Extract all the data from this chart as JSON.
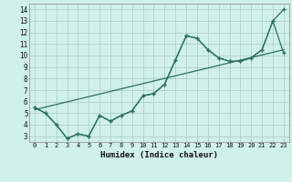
{
  "xlabel": "Humidex (Indice chaleur)",
  "xlim": [
    -0.5,
    23.5
  ],
  "ylim": [
    2.5,
    14.5
  ],
  "xticks": [
    0,
    1,
    2,
    3,
    4,
    5,
    6,
    7,
    8,
    9,
    10,
    11,
    12,
    13,
    14,
    15,
    16,
    17,
    18,
    19,
    20,
    21,
    22,
    23
  ],
  "yticks": [
    3,
    4,
    5,
    6,
    7,
    8,
    9,
    10,
    11,
    12,
    13,
    14
  ],
  "bg_color": "#d0f0ea",
  "grid_color": "#b0cfc8",
  "line_color": "#2a7060",
  "line1_x": [
    0,
    1,
    2,
    3,
    4,
    5,
    6,
    7,
    8,
    9,
    10,
    11,
    12,
    13,
    14,
    15,
    16,
    17,
    18,
    19,
    20,
    21,
    22,
    23
  ],
  "line1_y": [
    5.5,
    5.0,
    4.0,
    2.8,
    3.2,
    3.0,
    4.8,
    4.3,
    4.8,
    5.2,
    6.5,
    6.7,
    7.5,
    9.6,
    11.7,
    11.5,
    10.5,
    9.8,
    9.5,
    9.5,
    9.8,
    10.5,
    13.0,
    14.0
  ],
  "line2_x": [
    0,
    1,
    2,
    3,
    4,
    5,
    6,
    7,
    8,
    9,
    10,
    11,
    12,
    13,
    14,
    15,
    16,
    17,
    18,
    19,
    20,
    21,
    22,
    23
  ],
  "line2_y": [
    5.5,
    5.0,
    4.0,
    2.8,
    3.2,
    3.0,
    4.8,
    4.3,
    4.8,
    5.2,
    6.5,
    6.7,
    7.5,
    9.6,
    11.7,
    11.5,
    10.5,
    9.8,
    9.5,
    9.5,
    9.8,
    10.5,
    13.0,
    10.2
  ],
  "line3_x": [
    0,
    23
  ],
  "line3_y": [
    5.3,
    10.5
  ]
}
